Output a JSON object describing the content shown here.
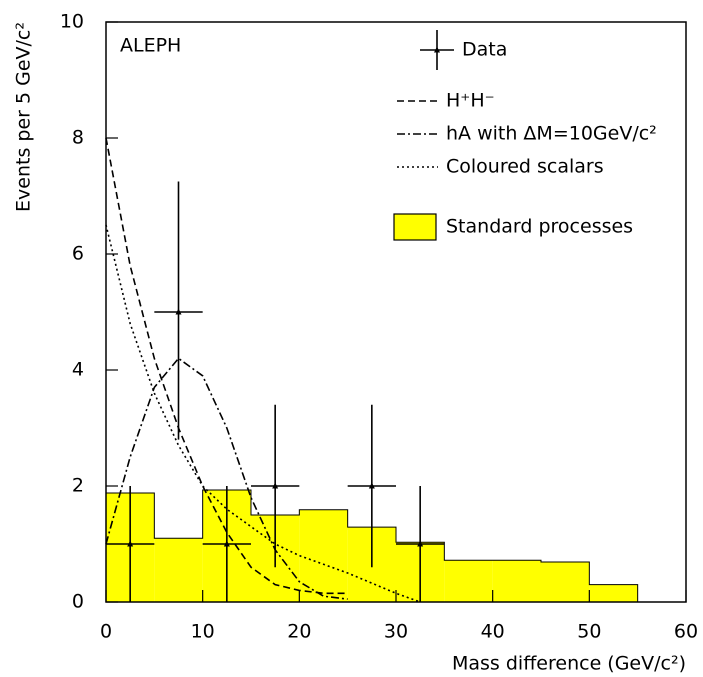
{
  "chart_data": {
    "type": "histogram",
    "annotation": "ALEPH",
    "xlabel": "Mass difference (GeV/c²)",
    "ylabel": "Events per 5 GeV/c²",
    "xlim": [
      0,
      60
    ],
    "ylim": [
      0,
      10
    ],
    "xticks": [
      0,
      10,
      20,
      30,
      40,
      50,
      60
    ],
    "yticks": [
      0,
      2,
      4,
      6,
      8,
      10
    ],
    "histogram": {
      "name": "Standard processes",
      "color": "#ffff00",
      "bins": [
        0,
        5,
        10,
        15,
        20,
        25,
        30,
        35,
        40,
        45,
        50,
        55
      ],
      "counts": [
        1.88,
        1.1,
        1.93,
        1.5,
        1.59,
        1.29,
        1.03,
        0.72,
        0.72,
        0.69,
        0.3
      ]
    },
    "data": {
      "name": "Data",
      "x": [
        2.5,
        7.5,
        12.5,
        17.5,
        27.5,
        32.5
      ],
      "y": [
        1,
        5,
        1,
        2,
        2,
        1
      ],
      "xerr": [
        2.5,
        2.5,
        2.5,
        2.5,
        2.5,
        2.5
      ],
      "yerr_low": [
        1,
        2.2,
        1,
        1.4,
        1.4,
        1
      ],
      "yerr_high": [
        1,
        2.25,
        1,
        1.4,
        1.4,
        1
      ]
    },
    "curves": [
      {
        "name": "H⁺H⁻",
        "style": "dashed",
        "color": "#000000",
        "x": [
          0,
          2.5,
          5,
          7.5,
          10,
          12.5,
          15,
          17.5,
          20,
          22.5,
          25
        ],
        "y": [
          8,
          5.8,
          4.2,
          3.0,
          2.0,
          1.2,
          0.6,
          0.3,
          0.2,
          0.15,
          0.15
        ]
      },
      {
        "name": "hA with ΔM=10GeV/c²",
        "style": "dashdot",
        "color": "#000000",
        "x": [
          0,
          2.5,
          5,
          7.5,
          10,
          12.5,
          15,
          17.5,
          20,
          22.5,
          25
        ],
        "y": [
          1.0,
          2.5,
          3.7,
          4.2,
          3.9,
          3.0,
          1.8,
          0.9,
          0.35,
          0.1,
          0.05
        ]
      },
      {
        "name": "Coloured scalars",
        "style": "dotted",
        "color": "#000000",
        "x": [
          0,
          2.5,
          5,
          7.5,
          10,
          12.5,
          15,
          17.5,
          20,
          25,
          30,
          32.5
        ],
        "y": [
          6.5,
          4.8,
          3.6,
          2.7,
          2.0,
          1.6,
          1.3,
          1.0,
          0.8,
          0.5,
          0.15,
          0
        ]
      }
    ]
  }
}
